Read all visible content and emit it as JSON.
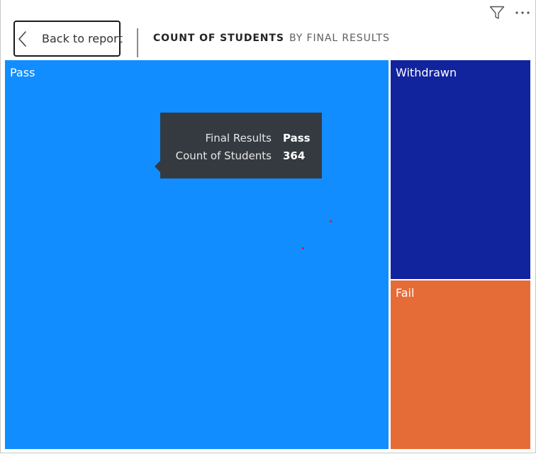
{
  "header": {
    "back_label": "Back to report",
    "title": "COUNT OF STUDENTS",
    "subtitle": "BY FINAL RESULTS"
  },
  "icons": {
    "filter": "filter-icon",
    "more": "more-options-icon",
    "back": "chevron-left-icon"
  },
  "chart_data": {
    "type": "treemap",
    "title": "COUNT OF STUDENTS",
    "subtitle": "BY FINAL RESULTS",
    "categories": [
      "Pass",
      "Withdrawn",
      "Fail"
    ],
    "values": [
      364,
      null,
      null
    ],
    "colors": [
      "#118DFF",
      "#12239E",
      "#E66C37"
    ]
  },
  "tooltip": {
    "rows": [
      {
        "key": "Final Results",
        "value": "Pass"
      },
      {
        "key": "Count of Students",
        "value": "364"
      }
    ]
  }
}
